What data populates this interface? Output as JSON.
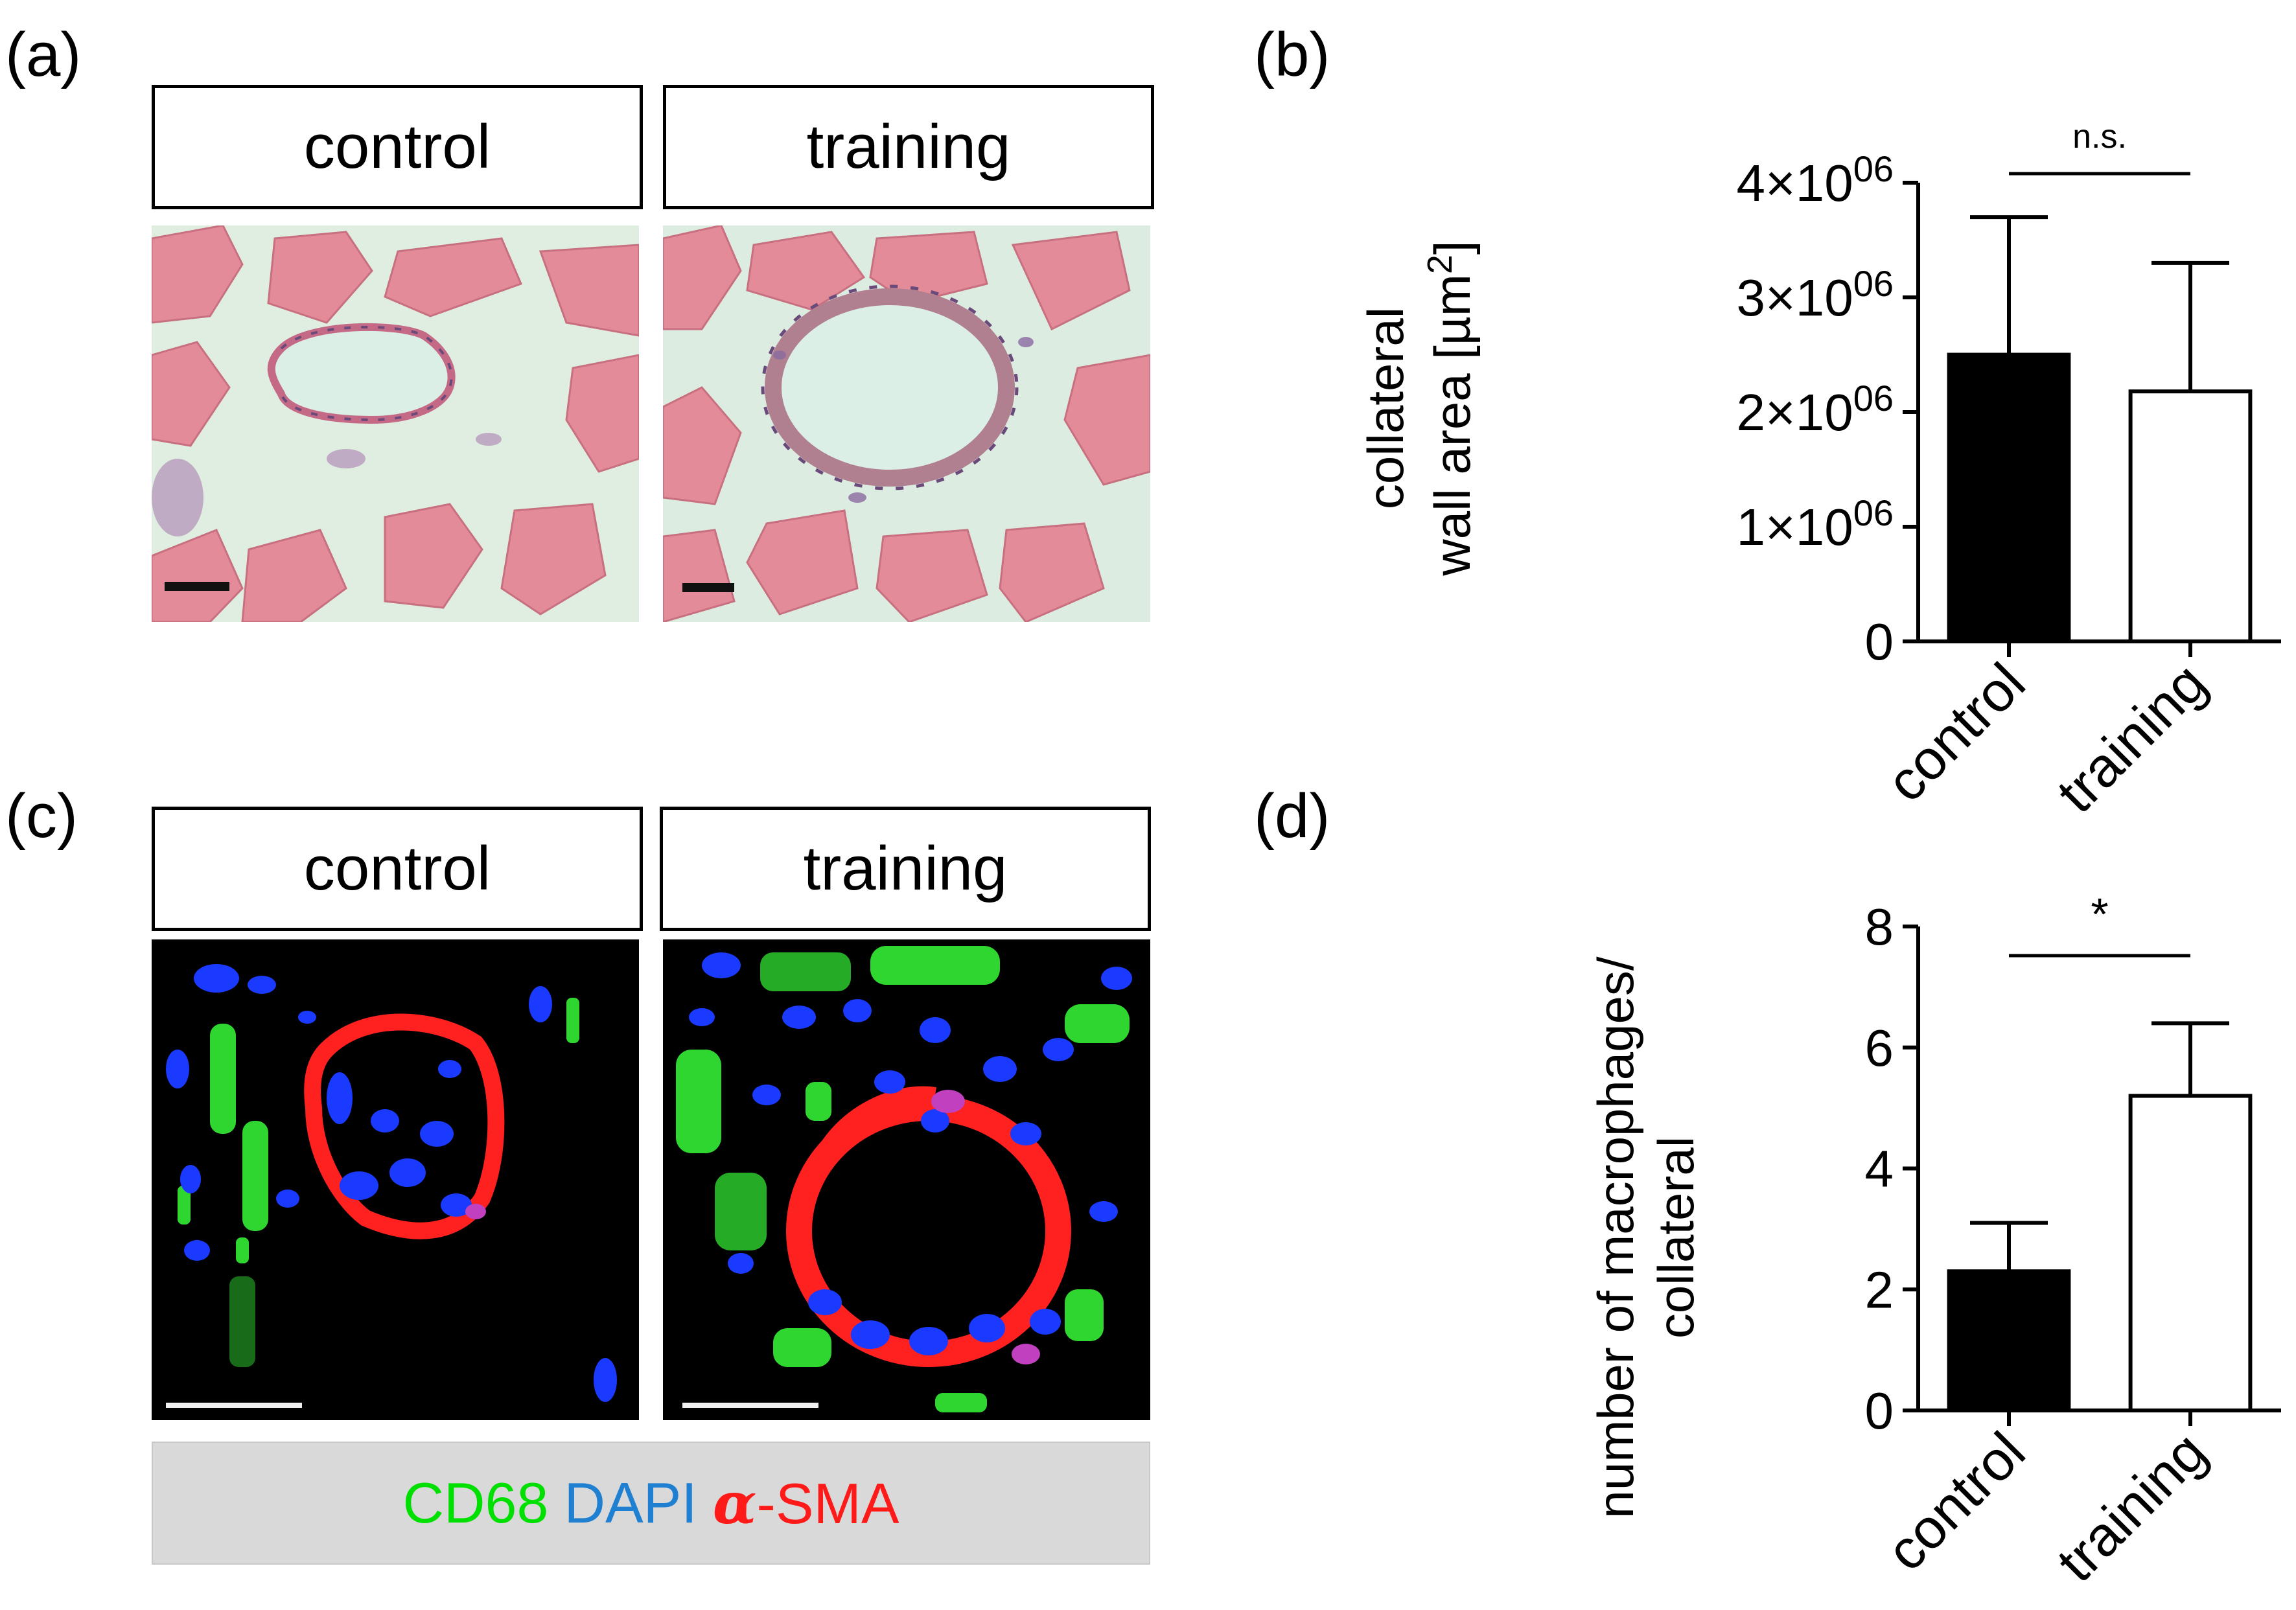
{
  "panels": {
    "a": {
      "letter": "(a)",
      "labels": [
        "control",
        "training"
      ],
      "image_desc": [
        "H&E stained collateral cross-section, control",
        "H&E stained collateral cross-section, training"
      ]
    },
    "b": {
      "letter": "(b)",
      "ylabel_line1": "collateral",
      "ylabel_line2": "wall area [µm",
      "ylabel_sup": "2",
      "ylabel_end": "]",
      "significance": "n.s."
    },
    "c": {
      "letter": "(c)",
      "labels": [
        "control",
        "training"
      ],
      "legend": {
        "cd68": "CD68",
        "dapi": "DAPI",
        "alpha": "α",
        "sma": "-SMA"
      },
      "colors": {
        "cd68": "#00e000",
        "dapi": "#1f7fd0",
        "sma": "#ff1a1a"
      }
    },
    "d": {
      "letter": "(d)",
      "ylabel_line1": "number of macrophages/",
      "ylabel_line2": "collateral",
      "significance": "*"
    }
  },
  "chart_data": [
    {
      "id": "b",
      "type": "bar",
      "categories": [
        "control",
        "training"
      ],
      "values": [
        2500000,
        2180000
      ],
      "errors": [
        1200000,
        1120000
      ],
      "fill": [
        "#000000",
        "#ffffff"
      ],
      "ylabel": "collateral wall area [µm2]",
      "ylim": [
        0,
        4000000
      ],
      "yticks": [
        0,
        1000000,
        2000000,
        3000000,
        4000000
      ],
      "ytick_labels": [
        "0",
        "1×10",
        "2×10",
        "3×10",
        "4×10"
      ],
      "ytick_exponent": "06",
      "annotation": "n.s."
    },
    {
      "id": "d",
      "type": "bar",
      "categories": [
        "control",
        "training"
      ],
      "values": [
        2.3,
        5.2
      ],
      "errors": [
        0.8,
        1.2
      ],
      "fill": [
        "#000000",
        "#ffffff"
      ],
      "ylabel": "number of macrophages/ collateral",
      "ylim": [
        0,
        8
      ],
      "yticks": [
        0,
        2,
        4,
        6,
        8
      ],
      "ytick_labels": [
        "0",
        "2",
        "4",
        "6",
        "8"
      ],
      "annotation": "*"
    }
  ]
}
